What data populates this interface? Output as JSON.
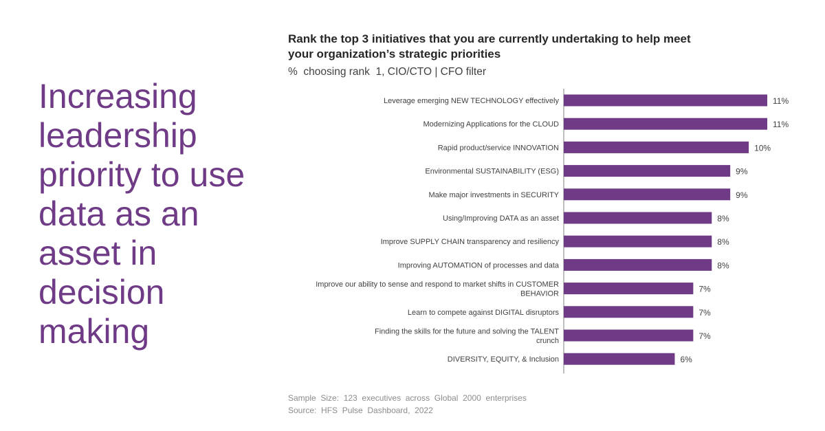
{
  "headline": "Increasing leadership priority to use data as an asset in decision making",
  "chart_data": {
    "type": "bar",
    "orientation": "horizontal",
    "title": "Rank the top 3 initiatives that you are currently undertaking to help meet your organization’s strategic priorities",
    "subtitle": "%  choosing rank  1, CIO/CTO | CFO filter",
    "categories": [
      "Leverage emerging NEW TECHNOLOGY effectively",
      "Modernizing Applications for the CLOUD",
      "Rapid product/service INNOVATION",
      "Environmental SUSTAINABILITY (ESG)",
      "Make major investments in SECURITY",
      "Using/Improving DATA as an asset",
      "Improve SUPPLY CHAIN transparency and resiliency",
      "Improving AUTOMATION of processes and data",
      "Improve our ability to sense and respond to market shifts in CUSTOMER BEHAVIOR",
      "Learn to compete against DIGITAL disruptors",
      "Finding the skills for the future and solving the TALENT crunch",
      "DIVERSITY, EQUITY, & Inclusion"
    ],
    "values": [
      11,
      11,
      10,
      9,
      9,
      8,
      8,
      8,
      7,
      7,
      7,
      6
    ],
    "data_labels": [
      "11%",
      "11%",
      "10%",
      "9%",
      "9%",
      "8%",
      "8%",
      "8%",
      "7%",
      "7%",
      "7%",
      "6%"
    ],
    "bar_color": "#6f3a86",
    "grid": false
  },
  "footnotes": {
    "sample": "Sample  Size:  123  executives  across  Global  2000  enterprises",
    "source": "Source:  HFS  Pulse  Dashboard,  2022"
  }
}
